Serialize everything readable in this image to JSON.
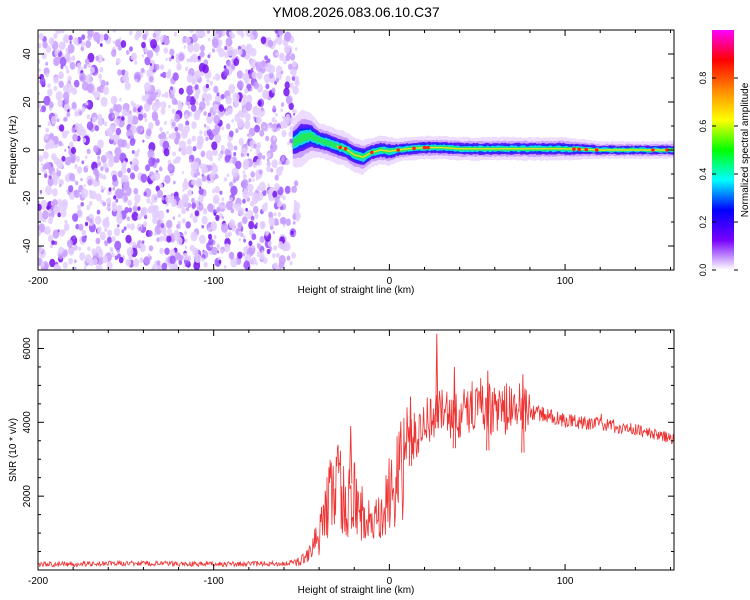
{
  "title": "YM08.2026.083.06.10.C37",
  "chart_data": [
    {
      "type": "heatmap",
      "name": "spectrogram",
      "xlabel": "Height of straight line (km)",
      "ylabel": "Frequency (Hz)",
      "xlim": [
        -200,
        162
      ],
      "ylim": [
        -50,
        50
      ],
      "xticks": [
        -200,
        -100,
        0,
        100
      ],
      "xtick_labels": [
        "-200",
        "-100",
        "0",
        "100"
      ],
      "yticks": [
        -40,
        -20,
        0,
        20,
        40
      ],
      "ytick_labels": [
        "-40",
        "-20",
        "0",
        "20",
        "40"
      ],
      "noise_region_x": [
        -200,
        -52
      ],
      "signal_band": {
        "x": [
          -55,
          -50,
          -45,
          -40,
          -35,
          -30,
          -25,
          -20,
          -15,
          -10,
          -5,
          0,
          5,
          10,
          20,
          30,
          40,
          60,
          80,
          100,
          120,
          140,
          162
        ],
        "center_hz": [
          3,
          5,
          6,
          4,
          3,
          1.5,
          0.5,
          -2,
          -3,
          -1,
          0,
          -0.5,
          0,
          0.5,
          1,
          1,
          0.5,
          0.5,
          0.5,
          0.5,
          0,
          0,
          0
        ],
        "half_width_hz": [
          4,
          5,
          4,
          3,
          3,
          3,
          3,
          3,
          3,
          2.5,
          2.5,
          2.5,
          2,
          2,
          2,
          2,
          2,
          2,
          2,
          2,
          1.5,
          1.5,
          1.5
        ]
      },
      "colorbar": {
        "label": "Normalized spectral amplitude",
        "range": [
          0.0,
          1.0
        ],
        "ticks": [
          0.0,
          0.2,
          0.4,
          0.6,
          0.8
        ],
        "tick_labels": [
          "0.0",
          "0.2",
          "0.4",
          "0.6",
          "0.8"
        ],
        "colors": [
          "#ffffff",
          "#7700ff",
          "#0000ff",
          "#00ffff",
          "#00ff00",
          "#ffff00",
          "#ff8800",
          "#ff0000",
          "#ff00ff"
        ]
      }
    },
    {
      "type": "line",
      "name": "snr",
      "xlabel": "Height of straight line (km)",
      "ylabel": "SNR (10 * v/v)",
      "xlim": [
        -200,
        162
      ],
      "ylim": [
        0,
        6500
      ],
      "xticks": [
        -200,
        -100,
        0,
        100
      ],
      "xtick_labels": [
        "-200",
        "-100",
        "0",
        "100"
      ],
      "yticks": [
        2000,
        4000,
        6000
      ],
      "ytick_labels": [
        "2000",
        "4000",
        "6000"
      ],
      "color": "#ee3333",
      "series": [
        {
          "name": "SNR",
          "x": [
            -200,
            -150,
            -100,
            -60,
            -50,
            -40,
            -35,
            -30,
            -25,
            -20,
            -15,
            -10,
            -5,
            0,
            5,
            10,
            15,
            20,
            25,
            30,
            40,
            50,
            60,
            70,
            80,
            100,
            120,
            140,
            162
          ],
          "values": [
            150,
            180,
            160,
            170,
            250,
            900,
            1800,
            2600,
            1700,
            2000,
            1500,
            1200,
            1300,
            2000,
            2400,
            3400,
            3600,
            4000,
            4200,
            4300,
            4100,
            4600,
            4300,
            4400,
            4300,
            4050,
            3950,
            3800,
            3550
          ],
          "spikes": [
            {
              "x": 27,
              "value": 6400
            },
            {
              "x": 37,
              "value": 5500
            },
            {
              "x": 56,
              "value": 5400
            },
            {
              "x": 76,
              "value": 5300
            },
            {
              "x": -22,
              "value": 3900
            },
            {
              "x": 12,
              "value": 4700
            }
          ]
        }
      ]
    }
  ]
}
